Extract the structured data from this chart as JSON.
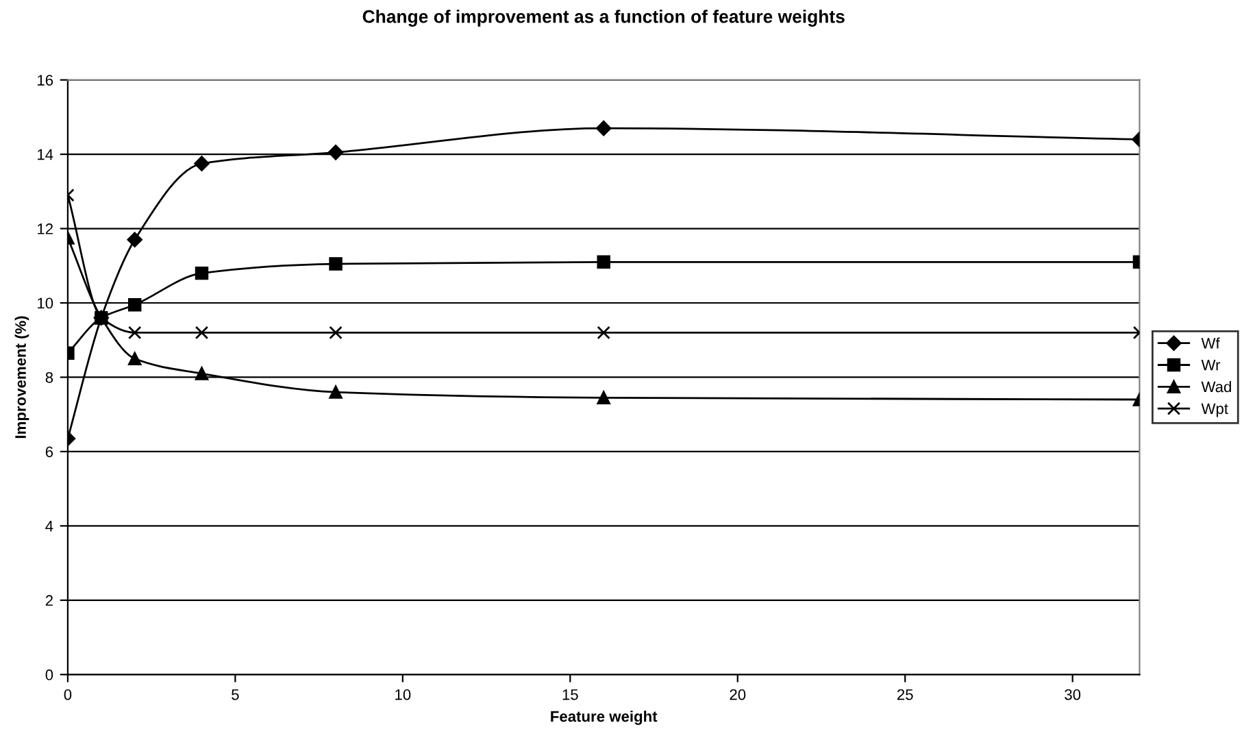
{
  "chart_data": {
    "type": "line",
    "title": "Change of improvement as a function of feature weights",
    "xlabel": "Feature weight",
    "ylabel": "Improvement (%)",
    "x": [
      0,
      1,
      2,
      4,
      8,
      16,
      32
    ],
    "series": [
      {
        "name": "Wf",
        "color": "#000000",
        "marker": "diamond",
        "values": [
          6.35,
          9.6,
          11.7,
          13.75,
          14.05,
          14.7,
          14.4
        ]
      },
      {
        "name": "Wr",
        "color": "#000000",
        "marker": "square",
        "values": [
          8.65,
          9.6,
          9.95,
          10.8,
          11.05,
          11.1,
          11.1
        ]
      },
      {
        "name": "Wad",
        "color": "#000000",
        "marker": "triangle",
        "values": [
          11.75,
          9.6,
          8.5,
          8.1,
          7.6,
          7.45,
          7.4
        ]
      },
      {
        "name": "Wpt",
        "color": "#000000",
        "marker": "cross",
        "values": [
          12.9,
          9.6,
          9.2,
          9.2,
          9.2,
          9.2,
          9.2
        ]
      }
    ],
    "xlim": [
      0,
      32
    ],
    "xticks": [
      0,
      5,
      10,
      15,
      20,
      25,
      30
    ],
    "ylim": [
      0,
      16
    ],
    "yticks": [
      0,
      2,
      4,
      6,
      8,
      10,
      12,
      14,
      16
    ],
    "grid": "y",
    "legend": "right",
    "line_style": "solid"
  }
}
